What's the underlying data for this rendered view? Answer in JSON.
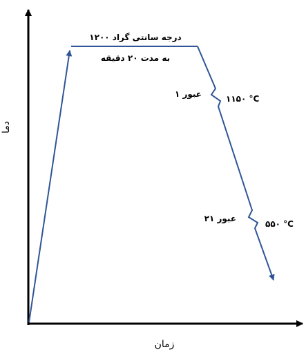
{
  "labels": {
    "hold_line1": "۱۲۰۰ درجه سانتی گراد",
    "hold_line2": "به مدت ۲۰ دقیقه",
    "pass1": "عبور ۱",
    "pass1_temp": "۱۱۵۰ °C",
    "pass21": "عبور ۲۱",
    "pass21_temp": "۵۵۰ °C",
    "y_axis": "دما",
    "x_axis": "زمان"
  },
  "colors": {
    "curve": "#2f5597",
    "axes": "#000000",
    "text": "#000000"
  }
}
